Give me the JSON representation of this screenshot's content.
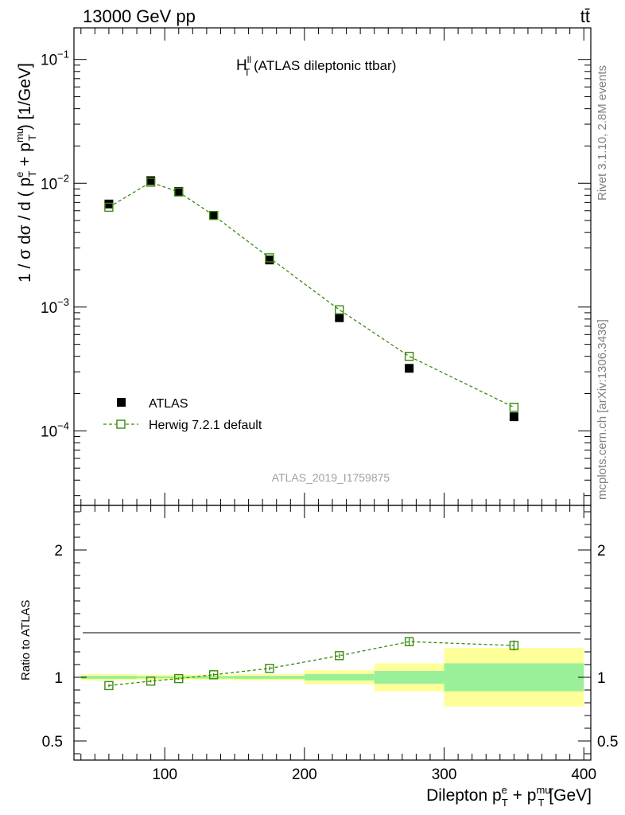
{
  "header": {
    "energy_label": "13000 GeV pp",
    "process_label": "tt̄"
  },
  "side_text": {
    "rivet": "Rivet 3.1.10,  2.8M events",
    "mcplots": "mcplots.cern.ch [arXiv:1306.3436]"
  },
  "chart_data": [
    {
      "type": "scatter",
      "title": "H",
      "title_sup": "ll",
      "title_sub": "T",
      "title_rest": " (ATLAS dileptonic ttbar)",
      "analysis_id": "ATLAS_2019_I1759875",
      "ylabel": "1 / σ  dσ / d ( p^e_T + p^mu_T ) [1/GeV]",
      "yscale": "log",
      "ylim": [
        2.5e-05,
        0.18
      ],
      "xlim": [
        35,
        405
      ],
      "yticks_major": [
        {
          "value": 0.1,
          "base": "10",
          "exp": "−1"
        },
        {
          "value": 0.01,
          "base": "10",
          "exp": "−2"
        },
        {
          "value": 0.001,
          "base": "10",
          "exp": "−3"
        },
        {
          "value": 0.0001,
          "base": "10",
          "exp": "−4"
        }
      ],
      "legend_position": "bottom-left",
      "series": [
        {
          "name": "ATLAS",
          "style": "black-filled-square",
          "color": "#000000",
          "x": [
            60,
            90,
            110,
            135,
            175,
            225,
            275,
            350
          ],
          "y": [
            0.0068,
            0.0105,
            0.0086,
            0.0055,
            0.0024,
            0.00082,
            0.00032,
            0.00013
          ]
        },
        {
          "name": "Herwig 7.2.1 default",
          "style": "green-open-square-dashed",
          "color": "#3a8a0c",
          "x": [
            60,
            90,
            110,
            135,
            175,
            225,
            275,
            350
          ],
          "y": [
            0.0064,
            0.0102,
            0.0085,
            0.0055,
            0.0025,
            0.00095,
            0.0004,
            0.000155
          ]
        }
      ]
    },
    {
      "type": "scatter",
      "ylabel": "Ratio to ATLAS",
      "xlabel": "Dilepton p^e_T + p^mu_T [GeV]",
      "ylim": [
        0.35,
        2.35
      ],
      "xlim": [
        35,
        405
      ],
      "yticks": [
        0.5,
        1,
        2
      ],
      "ytick_labels": [
        "0.5",
        "1",
        "2"
      ],
      "xticks": [
        100,
        200,
        300,
        400
      ],
      "xtick_labels": [
        "100",
        "200",
        "300",
        "400"
      ],
      "uncertainty_bands": [
        {
          "x_low": 40,
          "x_high": 80,
          "stat": 0.012,
          "total": 0.025
        },
        {
          "x_low": 80,
          "x_high": 100,
          "stat": 0.008,
          "total": 0.02
        },
        {
          "x_low": 100,
          "x_high": 120,
          "stat": 0.008,
          "total": 0.02
        },
        {
          "x_low": 120,
          "x_high": 150,
          "stat": 0.01,
          "total": 0.02
        },
        {
          "x_low": 150,
          "x_high": 200,
          "stat": 0.012,
          "total": 0.025
        },
        {
          "x_low": 200,
          "x_high": 250,
          "stat": 0.025,
          "total": 0.055
        },
        {
          "x_low": 250,
          "x_high": 300,
          "stat": 0.05,
          "total": 0.11
        },
        {
          "x_low": 300,
          "x_high": 400,
          "stat": 0.11,
          "total": 0.23
        }
      ],
      "band_colors": {
        "stat": "#99f099",
        "total": "#ffff99"
      },
      "series": [
        {
          "name": "Herwig 7.2.1 default",
          "color": "#3a8a0c",
          "x": [
            60,
            90,
            110,
            135,
            175,
            225,
            275,
            350
          ],
          "y": [
            0.935,
            0.97,
            0.99,
            1.02,
            1.07,
            1.17,
            1.28,
            1.25
          ],
          "err": [
            0.012,
            0.01,
            0.01,
            0.012,
            0.015,
            0.02,
            0.035,
            0.04
          ]
        }
      ]
    }
  ]
}
